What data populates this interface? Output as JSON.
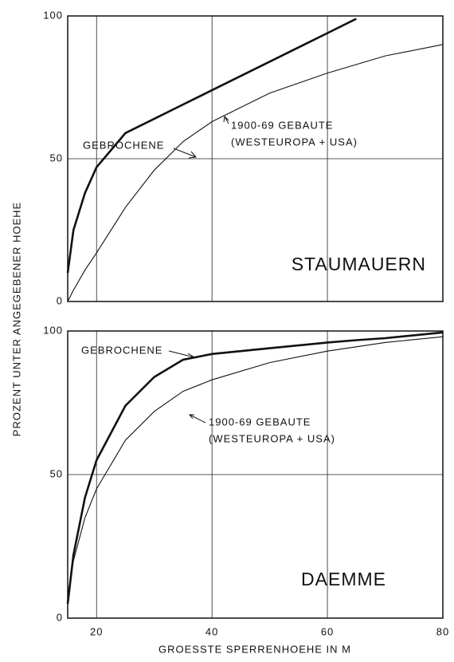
{
  "chart_data": [
    {
      "type": "line",
      "label": "STAUMAUERN",
      "ylabel": "PROZENT UNTER ANGEGEBENER HOEHE",
      "x": [
        15,
        16,
        18,
        20,
        25,
        30,
        35,
        40,
        50,
        60,
        65,
        70,
        80
      ],
      "series": [
        {
          "name": "GEBROCHENE",
          "color": "#111",
          "values": [
            10,
            25,
            38,
            47,
            59,
            64,
            69,
            74,
            84,
            94,
            99,
            null,
            null
          ]
        },
        {
          "name": "1900-69 GEBAUTE",
          "color": "#111",
          "values": [
            0,
            4,
            11,
            17,
            33,
            46,
            56,
            63,
            73,
            80,
            83,
            86,
            90
          ]
        }
      ],
      "annotations": [
        "(WESTEUROPA + USA)"
      ],
      "xlim": [
        15,
        80
      ],
      "xticks": [
        20,
        40,
        60,
        80
      ],
      "ylim": [
        0,
        100
      ],
      "yticks": [
        0,
        50,
        100
      ],
      "grid": true
    },
    {
      "type": "line",
      "label": "DAEMME",
      "xlabel": "GROESSTE SPERRENHOEHE IN M",
      "x": [
        15,
        16,
        18,
        20,
        25,
        30,
        35,
        40,
        50,
        60,
        65,
        70,
        80
      ],
      "series": [
        {
          "name": "GEBROCHENE",
          "color": "#111",
          "values": [
            5,
            22,
            42,
            55,
            74,
            84,
            90,
            92,
            94,
            96,
            96.8,
            97.5,
            99.5
          ]
        },
        {
          "name": "1900-69 GEBAUTE",
          "color": "#111",
          "values": [
            8,
            20,
            35,
            45,
            62,
            72,
            79,
            83,
            89,
            93,
            94.5,
            96,
            98
          ]
        }
      ],
      "annotations": [
        "(WESTEUROPA + USA)"
      ],
      "xlim": [
        15,
        80
      ],
      "xticks": [
        20,
        40,
        60,
        80
      ],
      "ylim": [
        0,
        100
      ],
      "yticks": [
        0,
        50,
        100
      ],
      "grid": true
    }
  ]
}
